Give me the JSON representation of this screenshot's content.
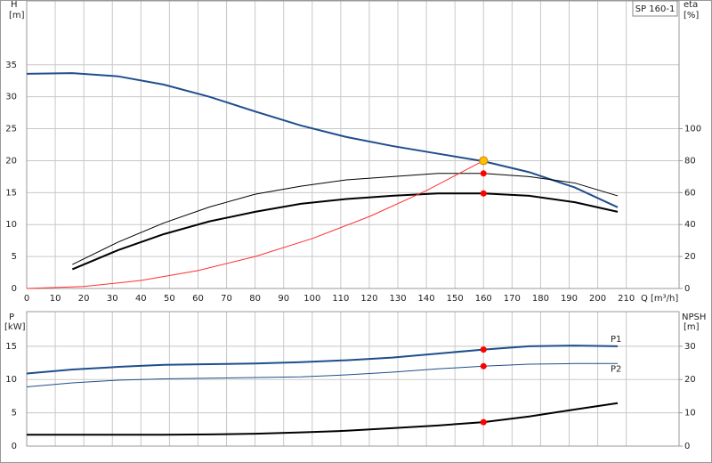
{
  "chart_data": [
    {
      "type": "line",
      "legend_title": "SP 160-1",
      "y_label": "H",
      "y_unit": "[m]",
      "y2_label": "eta",
      "y2_unit": "[%]",
      "x_label": "Q",
      "x_unit": "[m³/h]",
      "xlim": [
        0,
        228.5
      ],
      "xticks": [
        0,
        10,
        20,
        30,
        40,
        50,
        60,
        70,
        80,
        90,
        100,
        110,
        120,
        130,
        140,
        150,
        160,
        170,
        180,
        190,
        200,
        210
      ],
      "ylim": [
        0,
        45
      ],
      "yticks": [
        0,
        5,
        10,
        15,
        20,
        25,
        30,
        35
      ],
      "y2lim": [
        0,
        180
      ],
      "y2ticks": [
        0,
        20,
        40,
        60,
        80,
        100
      ],
      "grid": true,
      "series": [
        {
          "color": "#1f4e8c",
          "style": "thick",
          "axis": "y",
          "x": [
            0,
            16,
            32,
            48,
            64,
            80,
            96,
            112,
            128,
            144,
            160,
            176,
            192,
            207
          ],
          "values": [
            33.6,
            33.7,
            33.2,
            31.9,
            30,
            27.7,
            25.5,
            23.7,
            22.3,
            21.1,
            19.9,
            18.2,
            15.8,
            12.7
          ]
        },
        {
          "color": "#000000",
          "style": "thin",
          "axis": "y2",
          "x": [
            16,
            32,
            48,
            64,
            80,
            96,
            112,
            128,
            144,
            160,
            176,
            192,
            207
          ],
          "values": [
            15,
            29,
            41,
            51,
            59,
            64,
            68,
            70,
            72,
            72,
            70,
            66,
            58
          ]
        },
        {
          "color": "#000000",
          "style": "thick",
          "axis": "y2",
          "x": [
            16,
            32,
            48,
            64,
            80,
            96,
            112,
            128,
            144,
            160,
            176,
            192,
            207
          ],
          "values": [
            12,
            24,
            34,
            42,
            48,
            53,
            56,
            58,
            59.5,
            59.5,
            58,
            54,
            48
          ]
        },
        {
          "color": "#ff3030",
          "style": "thin",
          "axis": "y",
          "x": [
            0,
            20,
            40,
            60,
            80,
            100,
            120,
            140,
            160
          ],
          "values": [
            0,
            0.31,
            1.25,
            2.81,
            5,
            7.81,
            11.25,
            15.31,
            20
          ]
        }
      ],
      "markers": [
        {
          "x": 160,
          "y": 20,
          "axis": "y",
          "color": "#ffc000"
        },
        {
          "x": 160,
          "y": 72,
          "axis": "y2",
          "color": "#ff0000"
        },
        {
          "x": 160,
          "y": 59.5,
          "axis": "y2",
          "color": "#ff0000"
        }
      ]
    },
    {
      "type": "line",
      "y_label": "P",
      "y_unit": "[kW]",
      "y2_label": "NPSH",
      "y2_unit": "[m]",
      "xlim": [
        0,
        228.5
      ],
      "ylim": [
        0,
        20.2
      ],
      "yticks": [
        0,
        5,
        10,
        15
      ],
      "y2lim": [
        0,
        40.4
      ],
      "y2ticks": [
        0,
        10,
        20,
        30
      ],
      "grid": true,
      "series": [
        {
          "name": "P1",
          "color": "#1f4e8c",
          "style": "thick",
          "axis": "y",
          "x": [
            0,
            16,
            32,
            48,
            64,
            80,
            96,
            112,
            128,
            144,
            160,
            176,
            192,
            207
          ],
          "values": [
            10.9,
            11.5,
            11.9,
            12.2,
            12.3,
            12.4,
            12.6,
            12.9,
            13.3,
            13.9,
            14.5,
            15,
            15.1,
            15
          ]
        },
        {
          "name": "P2",
          "color": "#1f4e8c",
          "style": "thin",
          "axis": "y",
          "x": [
            0,
            16,
            32,
            48,
            64,
            80,
            96,
            112,
            128,
            144,
            160,
            176,
            192,
            207
          ],
          "values": [
            8.9,
            9.5,
            9.9,
            10.1,
            10.2,
            10.3,
            10.4,
            10.7,
            11.1,
            11.6,
            12,
            12.3,
            12.4,
            12.4
          ]
        },
        {
          "color": "#000000",
          "style": "thick",
          "axis": "y2",
          "x": [
            0,
            16,
            32,
            48,
            64,
            80,
            96,
            112,
            128,
            144,
            160,
            176,
            192,
            207
          ],
          "values": [
            3.4,
            3.4,
            3.4,
            3.4,
            3.5,
            3.7,
            4.1,
            4.6,
            5.4,
            6.2,
            7.2,
            8.9,
            11,
            12.9
          ]
        }
      ],
      "markers": [
        {
          "x": 160,
          "y": 14.5,
          "axis": "y",
          "color": "#ff0000"
        },
        {
          "x": 160,
          "y": 12,
          "axis": "y",
          "color": "#ff0000"
        },
        {
          "x": 160,
          "y": 7.2,
          "axis": "y2",
          "color": "#ff0000"
        }
      ]
    }
  ]
}
